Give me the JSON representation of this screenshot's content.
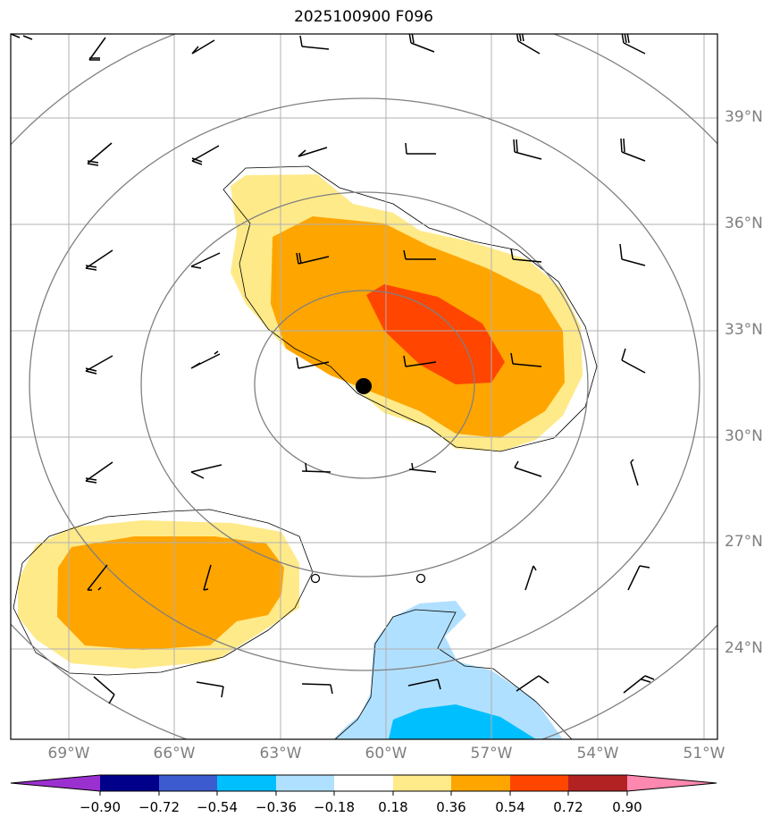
{
  "title": "2025100900 F096",
  "lat_labels": [
    "39°N",
    "36°N",
    "33°N",
    "30°N",
    "27°N",
    "24°N"
  ],
  "lon_labels": [
    "69°W",
    "66°W",
    "63°W",
    "60°W",
    "57°W",
    "54°W",
    "51°W"
  ],
  "colorbar": {
    "levels": [
      "−0.90",
      "−0.72",
      "−0.54",
      "−0.36",
      "−0.18",
      "0.18",
      "0.36",
      "0.54",
      "0.72",
      "0.90"
    ],
    "colors": {
      "below_min": "#9b30d0",
      "b1": "#00008b",
      "b2": "#3b5bcf",
      "b3": "#00bfff",
      "b4": "#b0e0ff",
      "neutral": "#ffffff",
      "p1": "#ffea8a",
      "p2": "#ffa500",
      "p3": "#ff4500",
      "p4": "#b22222",
      "above_max": "#ff88b0"
    }
  },
  "map": {
    "extent": {
      "lon_min": -70.6,
      "lon_max": -50.4,
      "lat_min": 21.5,
      "lat_max": 41.4
    },
    "center": {
      "lon": -60.6,
      "lat": 31.4
    },
    "stations": [
      {
        "lon": -62.0,
        "lat": 25.5
      },
      {
        "lon": -59.0,
        "lat": 25.5
      }
    ],
    "gridline_color": "#b0b0b0",
    "isoline_color": "#808080"
  }
}
